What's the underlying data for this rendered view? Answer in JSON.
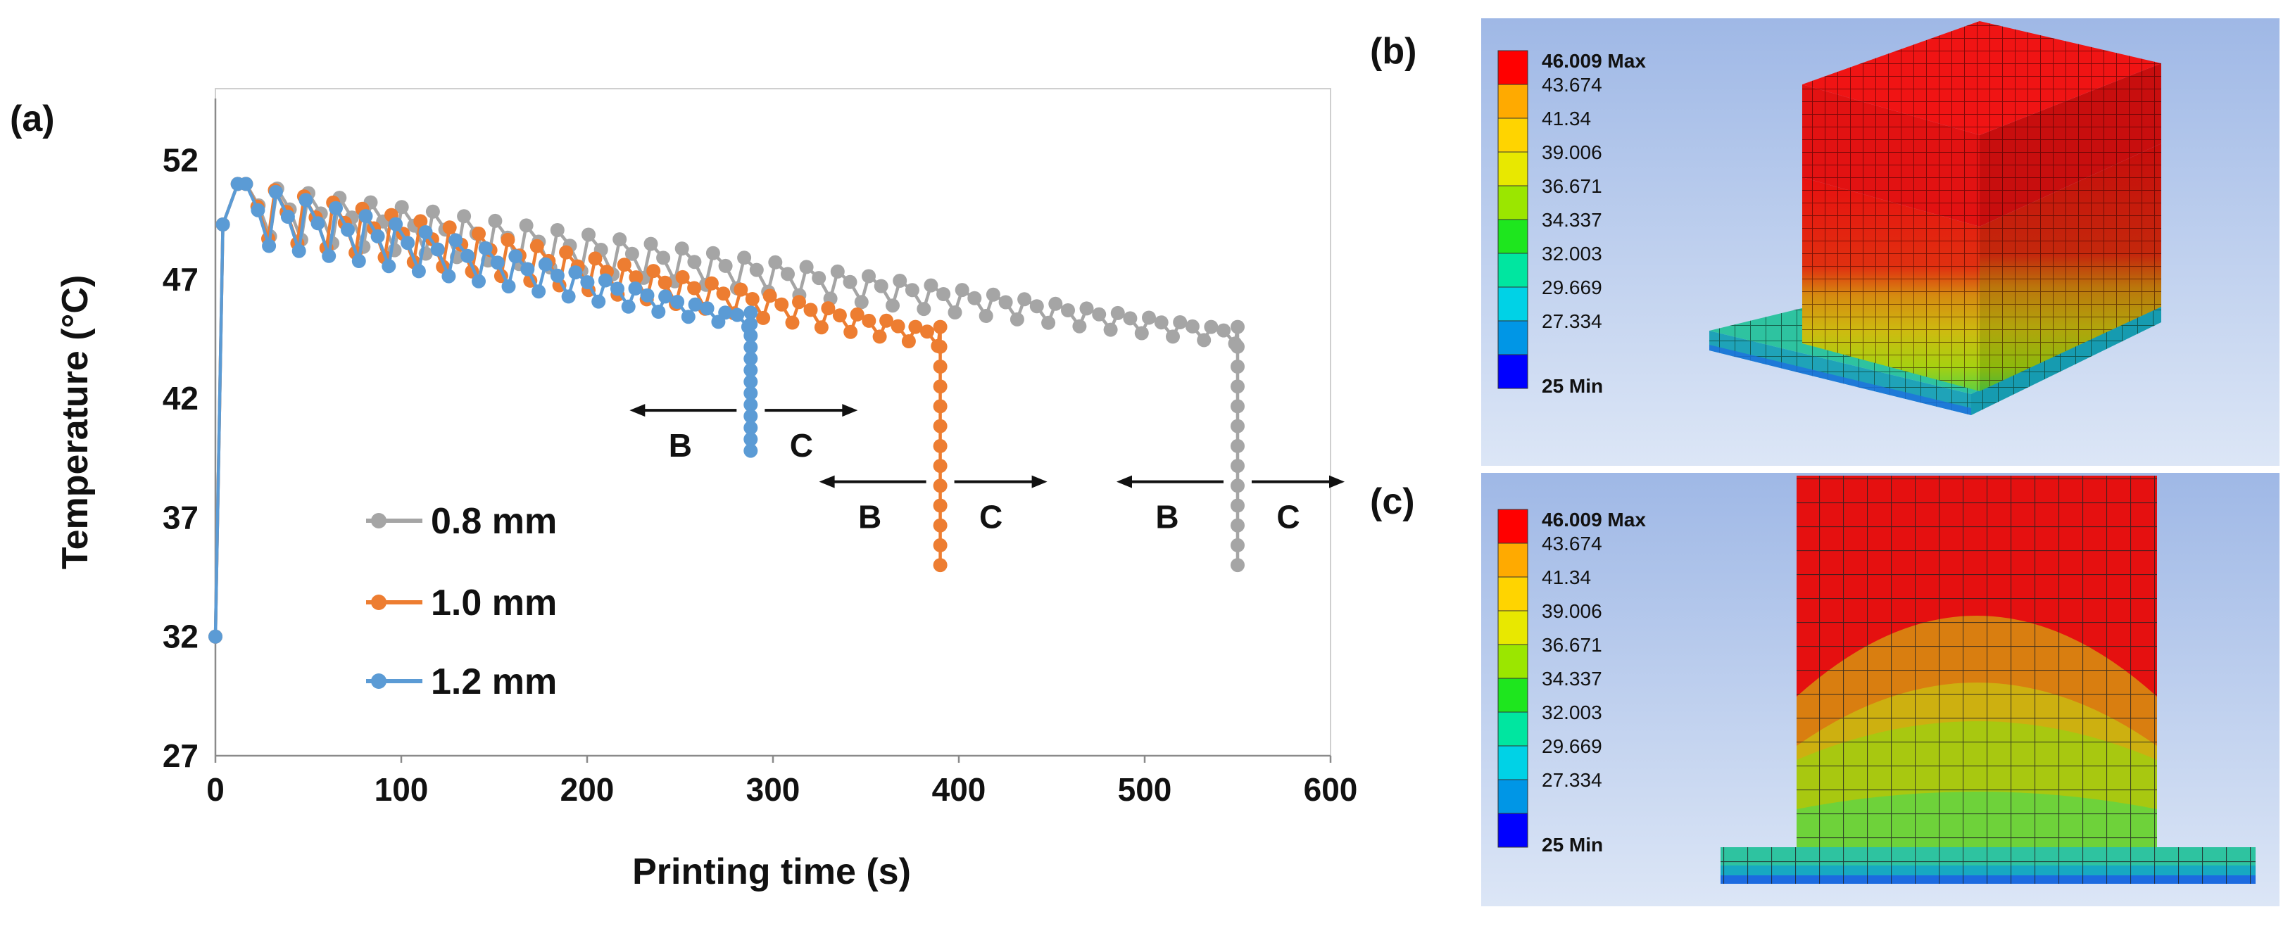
{
  "chart_data": {
    "type": "line",
    "panel_label": "(a)",
    "xlabel": "Printing time (s)",
    "ylabel": "Temperature (°C)",
    "xlim": [
      0,
      600
    ],
    "ylim": [
      27,
      55
    ],
    "xticks": [
      0,
      100,
      200,
      300,
      400,
      500,
      600
    ],
    "yticks": [
      27,
      32,
      37,
      42,
      47,
      52
    ],
    "grid": false,
    "legend_position": "bottom-left",
    "series": [
      {
        "name": "0.8 mm",
        "color": "#A5A5A5",
        "end_time": 550,
        "peak_start": 51.0,
        "peak_end": 45.0,
        "valley_start": 48.8,
        "valley_end": 44.3,
        "cycles": 32,
        "final_drop": 35.0
      },
      {
        "name": "1.0 mm",
        "color": "#ED7D31",
        "end_time": 390,
        "peak_start": 51.0,
        "peak_end": 45.0,
        "valley_start": 48.7,
        "valley_end": 44.2,
        "cycles": 24,
        "final_drop": 35.0
      },
      {
        "name": "1.2 mm",
        "color": "#5B9BD5",
        "end_time": 288,
        "peak_start": 51.0,
        "peak_end": 45.6,
        "valley_start": 48.4,
        "valley_end": 45.0,
        "cycles": 17,
        "final_drop": 39.8
      }
    ],
    "start_point": {
      "x": 0,
      "y": 32
    },
    "annotations": [
      {
        "left": "B",
        "right": "C",
        "x": 288,
        "y": 41.5
      },
      {
        "left": "B",
        "right": "C",
        "x": 390,
        "y": 38.5
      },
      {
        "left": "B",
        "right": "C",
        "x": 550,
        "y": 38.5
      }
    ]
  },
  "contour_panels": [
    {
      "panel_label": "(b)",
      "legend_values": [
        "46.009 Max",
        "43.674",
        "41.34",
        "39.006",
        "36.671",
        "34.337",
        "32.003",
        "29.669",
        "27.334",
        "25 Min"
      ],
      "legend_colors": [
        "#FF0000",
        "#FFAA00",
        "#FFD400",
        "#E8E800",
        "#9BE600",
        "#1EE61E",
        "#00E6A0",
        "#00D2E6",
        "#0096E6",
        "#0000FF"
      ]
    },
    {
      "panel_label": "(c)",
      "legend_values": [
        "46.009 Max",
        "43.674",
        "41.34",
        "39.006",
        "36.671",
        "34.337",
        "32.003",
        "29.669",
        "27.334",
        "25 Min"
      ],
      "legend_colors": [
        "#FF0000",
        "#FFAA00",
        "#FFD400",
        "#E8E800",
        "#9BE600",
        "#1EE61E",
        "#00E6A0",
        "#00D2E6",
        "#0096E6",
        "#0000FF"
      ]
    }
  ]
}
